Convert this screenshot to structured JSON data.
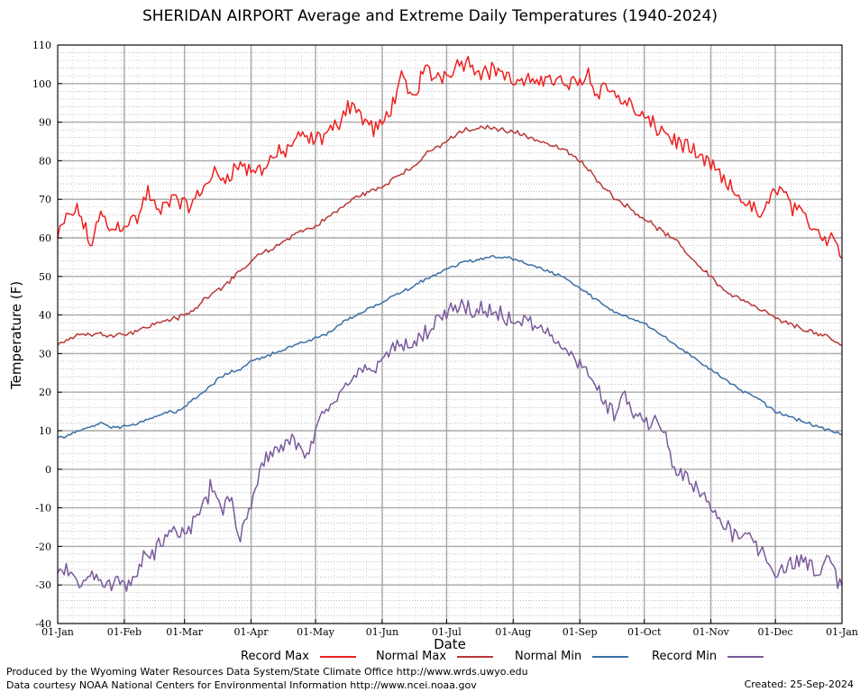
{
  "chart_data": {
    "type": "line",
    "title": "SHERIDAN AIRPORT Average and Extreme Daily Temperatures (1940-2024)",
    "xlabel": "Date",
    "ylabel": "Temperature (F)",
    "ylim": [
      -40,
      110
    ],
    "yticks": [
      "110",
      "100",
      "90",
      "80",
      "70",
      "60",
      "50",
      "40",
      "30",
      "20",
      "10",
      "0",
      "-10",
      "-20",
      "-30",
      "-40"
    ],
    "xticks": [
      "01-Jan",
      "01-Feb",
      "01-Mar",
      "01-Apr",
      "01-May",
      "01-Jun",
      "01-Jul",
      "01-Aug",
      "01-Sep",
      "01-Oct",
      "01-Nov",
      "01-Dec",
      "01-Jan"
    ],
    "xtick_days": [
      0,
      31,
      59,
      90,
      120,
      151,
      181,
      212,
      243,
      273,
      304,
      334,
      365
    ],
    "grid": true,
    "legend_position": "bottom",
    "series": [
      {
        "name": "Record Max",
        "color": "#ee2020",
        "anchors": [
          [
            0,
            60
          ],
          [
            5,
            66
          ],
          [
            10,
            67
          ],
          [
            15,
            58
          ],
          [
            20,
            66
          ],
          [
            25,
            62
          ],
          [
            31,
            64
          ],
          [
            37,
            65
          ],
          [
            42,
            72
          ],
          [
            47,
            66
          ],
          [
            52,
            70
          ],
          [
            55,
            71
          ],
          [
            59,
            68
          ],
          [
            63,
            69
          ],
          [
            68,
            73
          ],
          [
            72,
            77
          ],
          [
            76,
            75
          ],
          [
            80,
            77
          ],
          [
            85,
            79
          ],
          [
            90,
            77
          ],
          [
            95,
            78
          ],
          [
            100,
            81
          ],
          [
            105,
            82
          ],
          [
            110,
            85
          ],
          [
            115,
            86
          ],
          [
            120,
            85
          ],
          [
            125,
            87
          ],
          [
            130,
            89
          ],
          [
            133,
            93
          ],
          [
            137,
            95
          ],
          [
            142,
            91
          ],
          [
            147,
            88
          ],
          [
            151,
            89
          ],
          [
            155,
            94
          ],
          [
            160,
            101
          ],
          [
            163,
            98
          ],
          [
            166,
            96
          ],
          [
            170,
            104
          ],
          [
            174,
            102
          ],
          [
            178,
            102
          ],
          [
            181,
            103
          ],
          [
            186,
            105
          ],
          [
            190,
            106
          ],
          [
            195,
            104
          ],
          [
            200,
            103
          ],
          [
            205,
            104
          ],
          [
            210,
            101
          ],
          [
            215,
            100
          ],
          [
            220,
            100
          ],
          [
            225,
            102
          ],
          [
            230,
            101
          ],
          [
            235,
            100
          ],
          [
            240,
            100
          ],
          [
            243,
            101
          ],
          [
            247,
            103
          ],
          [
            250,
            98
          ],
          [
            255,
            99
          ],
          [
            260,
            97
          ],
          [
            265,
            95
          ],
          [
            270,
            92
          ],
          [
            273,
            91
          ],
          [
            277,
            89
          ],
          [
            282,
            88
          ],
          [
            287,
            85
          ],
          [
            292,
            84
          ],
          [
            297,
            81
          ],
          [
            300,
            80
          ],
          [
            304,
            79
          ],
          [
            308,
            76
          ],
          [
            312,
            73
          ],
          [
            317,
            71
          ],
          [
            322,
            68
          ],
          [
            327,
            66
          ],
          [
            331,
            68
          ],
          [
            334,
            74
          ],
          [
            338,
            72
          ],
          [
            343,
            67
          ],
          [
            348,
            65
          ],
          [
            352,
            63
          ],
          [
            357,
            60
          ],
          [
            361,
            61
          ],
          [
            365,
            55
          ]
        ],
        "noise": 3.0
      },
      {
        "name": "Normal Max",
        "color": "#b83838",
        "anchors": [
          [
            0,
            32
          ],
          [
            5,
            34
          ],
          [
            10,
            35
          ],
          [
            15,
            35
          ],
          [
            20,
            35
          ],
          [
            25,
            35
          ],
          [
            31,
            35
          ],
          [
            37,
            36
          ],
          [
            42,
            37
          ],
          [
            47,
            38
          ],
          [
            52,
            39
          ],
          [
            55,
            39
          ],
          [
            59,
            40
          ],
          [
            63,
            41
          ],
          [
            68,
            44
          ],
          [
            72,
            46
          ],
          [
            76,
            47
          ],
          [
            80,
            49
          ],
          [
            85,
            51
          ],
          [
            90,
            54
          ],
          [
            95,
            56
          ],
          [
            100,
            57
          ],
          [
            105,
            59
          ],
          [
            110,
            61
          ],
          [
            115,
            62
          ],
          [
            120,
            63
          ],
          [
            125,
            65
          ],
          [
            130,
            67
          ],
          [
            135,
            69
          ],
          [
            140,
            71
          ],
          [
            145,
            72
          ],
          [
            151,
            73
          ],
          [
            155,
            75
          ],
          [
            160,
            77
          ],
          [
            165,
            78
          ],
          [
            170,
            81
          ],
          [
            175,
            83
          ],
          [
            181,
            85
          ],
          [
            186,
            87
          ],
          [
            190,
            88
          ],
          [
            195,
            88
          ],
          [
            200,
            89
          ],
          [
            205,
            88
          ],
          [
            210,
            88
          ],
          [
            215,
            87
          ],
          [
            220,
            86
          ],
          [
            225,
            85
          ],
          [
            230,
            84
          ],
          [
            235,
            83
          ],
          [
            243,
            80
          ],
          [
            248,
            77
          ],
          [
            253,
            74
          ],
          [
            258,
            71
          ],
          [
            263,
            69
          ],
          [
            268,
            67
          ],
          [
            273,
            65
          ],
          [
            278,
            63
          ],
          [
            283,
            61
          ],
          [
            288,
            59
          ],
          [
            293,
            56
          ],
          [
            298,
            53
          ],
          [
            304,
            50
          ],
          [
            309,
            47
          ],
          [
            314,
            45
          ],
          [
            319,
            44
          ],
          [
            324,
            42
          ],
          [
            329,
            41
          ],
          [
            334,
            39
          ],
          [
            339,
            38
          ],
          [
            344,
            37
          ],
          [
            349,
            36
          ],
          [
            354,
            35
          ],
          [
            359,
            34
          ],
          [
            365,
            32
          ]
        ],
        "noise": 0.8
      },
      {
        "name": "Normal Min",
        "color": "#3a6ea5",
        "anchors": [
          [
            0,
            8
          ],
          [
            5,
            9
          ],
          [
            10,
            10
          ],
          [
            15,
            11
          ],
          [
            20,
            12
          ],
          [
            25,
            11
          ],
          [
            31,
            11
          ],
          [
            37,
            12
          ],
          [
            42,
            13
          ],
          [
            47,
            14
          ],
          [
            52,
            15
          ],
          [
            55,
            15
          ],
          [
            59,
            16
          ],
          [
            63,
            18
          ],
          [
            68,
            20
          ],
          [
            72,
            22
          ],
          [
            76,
            24
          ],
          [
            80,
            25
          ],
          [
            85,
            26
          ],
          [
            90,
            28
          ],
          [
            95,
            29
          ],
          [
            100,
            30
          ],
          [
            105,
            31
          ],
          [
            110,
            32
          ],
          [
            115,
            33
          ],
          [
            120,
            34
          ],
          [
            125,
            35
          ],
          [
            130,
            37
          ],
          [
            135,
            39
          ],
          [
            140,
            40
          ],
          [
            145,
            42
          ],
          [
            151,
            43
          ],
          [
            155,
            45
          ],
          [
            160,
            46
          ],
          [
            165,
            47
          ],
          [
            170,
            49
          ],
          [
            175,
            50
          ],
          [
            181,
            52
          ],
          [
            186,
            53
          ],
          [
            190,
            54
          ],
          [
            195,
            54
          ],
          [
            200,
            55
          ],
          [
            205,
            55
          ],
          [
            210,
            55
          ],
          [
            215,
            54
          ],
          [
            220,
            53
          ],
          [
            225,
            52
          ],
          [
            230,
            51
          ],
          [
            235,
            50
          ],
          [
            243,
            47
          ],
          [
            248,
            45
          ],
          [
            253,
            43
          ],
          [
            258,
            41
          ],
          [
            263,
            40
          ],
          [
            268,
            39
          ],
          [
            273,
            38
          ],
          [
            278,
            36
          ],
          [
            283,
            34
          ],
          [
            288,
            32
          ],
          [
            293,
            30
          ],
          [
            298,
            28
          ],
          [
            304,
            26
          ],
          [
            309,
            24
          ],
          [
            314,
            22
          ],
          [
            319,
            20
          ],
          [
            324,
            19
          ],
          [
            329,
            17
          ],
          [
            334,
            15
          ],
          [
            339,
            14
          ],
          [
            344,
            13
          ],
          [
            349,
            12
          ],
          [
            354,
            11
          ],
          [
            359,
            10
          ],
          [
            365,
            9
          ]
        ],
        "noise": 0.5
      },
      {
        "name": "Record Min",
        "color": "#7a5a9c",
        "anchors": [
          [
            0,
            -26
          ],
          [
            5,
            -27
          ],
          [
            10,
            -30
          ],
          [
            15,
            -28
          ],
          [
            20,
            -28
          ],
          [
            25,
            -30
          ],
          [
            31,
            -29
          ],
          [
            37,
            -27
          ],
          [
            42,
            -22
          ],
          [
            47,
            -20
          ],
          [
            52,
            -18
          ],
          [
            55,
            -16
          ],
          [
            59,
            -17
          ],
          [
            63,
            -14
          ],
          [
            68,
            -8
          ],
          [
            72,
            -5
          ],
          [
            76,
            -10
          ],
          [
            80,
            -8
          ],
          [
            85,
            -18
          ],
          [
            90,
            -10
          ],
          [
            95,
            2
          ],
          [
            100,
            4
          ],
          [
            105,
            6
          ],
          [
            110,
            8
          ],
          [
            115,
            2
          ],
          [
            120,
            10
          ],
          [
            125,
            14
          ],
          [
            130,
            18
          ],
          [
            135,
            22
          ],
          [
            140,
            26
          ],
          [
            145,
            25
          ],
          [
            151,
            30
          ],
          [
            155,
            30
          ],
          [
            160,
            32
          ],
          [
            165,
            32
          ],
          [
            170,
            34
          ],
          [
            175,
            38
          ],
          [
            181,
            40
          ],
          [
            186,
            42
          ],
          [
            190,
            41
          ],
          [
            195,
            40
          ],
          [
            200,
            42
          ],
          [
            205,
            40
          ],
          [
            210,
            38
          ],
          [
            215,
            38
          ],
          [
            220,
            38
          ],
          [
            225,
            36
          ],
          [
            230,
            34
          ],
          [
            235,
            32
          ],
          [
            243,
            28
          ],
          [
            248,
            24
          ],
          [
            253,
            18
          ],
          [
            258,
            14
          ],
          [
            263,
            18
          ],
          [
            268,
            15
          ],
          [
            273,
            12
          ],
          [
            278,
            12
          ],
          [
            283,
            8
          ],
          [
            288,
            -2
          ],
          [
            293,
            -2
          ],
          [
            298,
            -6
          ],
          [
            304,
            -10
          ],
          [
            309,
            -14
          ],
          [
            314,
            -16
          ],
          [
            319,
            -16
          ],
          [
            324,
            -18
          ],
          [
            329,
            -22
          ],
          [
            334,
            -27
          ],
          [
            339,
            -25
          ],
          [
            344,
            -24
          ],
          [
            349,
            -25
          ],
          [
            354,
            -28
          ],
          [
            359,
            -22
          ],
          [
            363,
            -29
          ],
          [
            365,
            -29
          ]
        ],
        "noise": 3.2
      }
    ]
  },
  "footer": {
    "line1": "Produced by the Wyoming Water Resources Data System/State Climate Office http://www.wrds.uwyo.edu",
    "line2": "Data courtesy NOAA National Centers for Environmental Information http://www.ncei.noaa.gov",
    "created": "Created:  25-Sep-2024"
  }
}
